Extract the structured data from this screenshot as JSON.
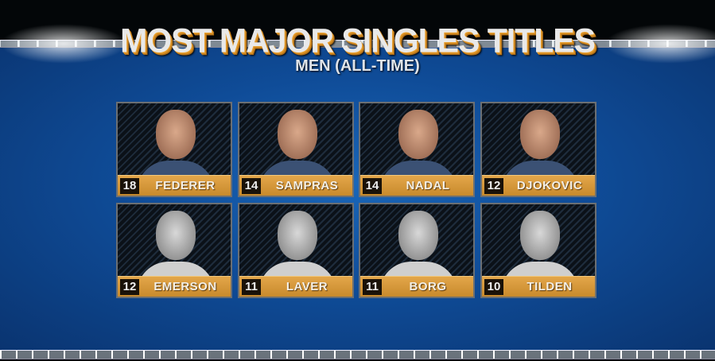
{
  "header": {
    "title": "MOST MAJOR SINGLES TITLES",
    "subtitle": "MEN (ALL-TIME)"
  },
  "colors": {
    "label_gold": "#d99a3a",
    "background_blue": "#1458a8"
  },
  "players": [
    {
      "titles": "18",
      "name": "FEDERER",
      "photo": "color"
    },
    {
      "titles": "14",
      "name": "SAMPRAS",
      "photo": "color"
    },
    {
      "titles": "14",
      "name": "NADAL",
      "photo": "color"
    },
    {
      "titles": "12",
      "name": "DJOKOVIC",
      "photo": "color"
    },
    {
      "titles": "12",
      "name": "EMERSON",
      "photo": "bw"
    },
    {
      "titles": "11",
      "name": "LAVER",
      "photo": "bw"
    },
    {
      "titles": "11",
      "name": "BORG",
      "photo": "bw"
    },
    {
      "titles": "10",
      "name": "TILDEN",
      "photo": "bw"
    }
  ]
}
